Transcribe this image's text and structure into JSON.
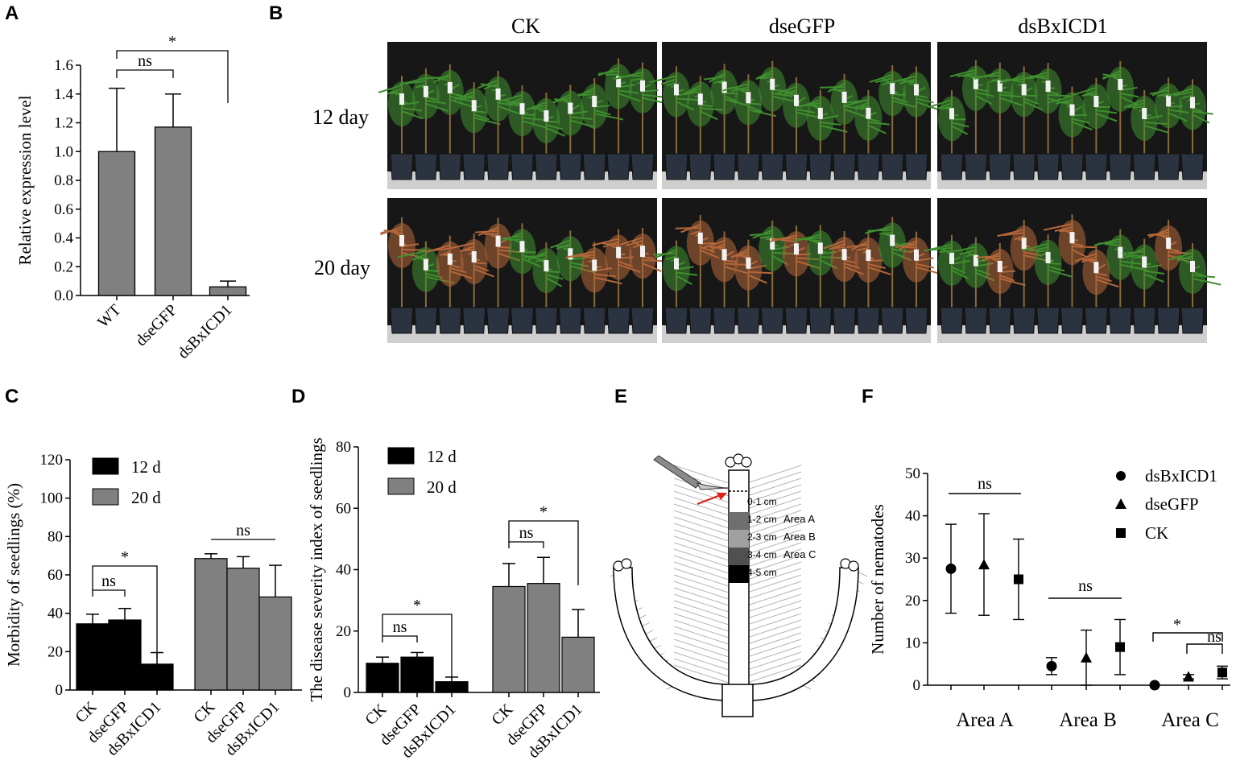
{
  "panels": {
    "A": "A",
    "B": "B",
    "C": "C",
    "D": "D",
    "E": "E",
    "F": "F"
  },
  "photo": {
    "columns": [
      "CK",
      "dseGFP",
      "dsBxICD1"
    ],
    "rows": [
      "12 day",
      "20 day"
    ],
    "colors": {
      "background": "#171717",
      "foliage": "#3f8f2f",
      "wilted": "#b5673a",
      "pot": "#2b3340"
    }
  },
  "diagram": {
    "segments": [
      {
        "label": "0-1 cm",
        "area": "",
        "color": "#ffffff"
      },
      {
        "label": "1-2 cm",
        "area": "Area A",
        "color": "#6f6f6f"
      },
      {
        "label": "2-3 cm",
        "area": "Area B",
        "color": "#a0a0a0"
      },
      {
        "label": "3-4 cm",
        "area": "Area C",
        "color": "#505050"
      },
      {
        "label": "4-5 cm",
        "area": "",
        "color": "#000000"
      }
    ]
  },
  "chart_data": [
    {
      "panel": "A",
      "type": "bar",
      "title": "",
      "xlabel": "",
      "ylabel": "Relative expression level",
      "categories": [
        "WT",
        "dseGFP",
        "dsBxICD1"
      ],
      "values": [
        1.0,
        1.17,
        0.06
      ],
      "errors": [
        0.44,
        0.23,
        0.04
      ],
      "ylim": [
        0,
        1.6
      ],
      "yticks": [
        "0.0",
        "0.2",
        "0.4",
        "0.6",
        "0.8",
        "1.0",
        "1.2",
        "1.4",
        "1.6"
      ],
      "color": "#808080",
      "annotations": [
        {
          "text": "ns",
          "from": 0,
          "to": 1
        },
        {
          "text": "*",
          "from": 0,
          "to": 2
        }
      ]
    },
    {
      "panel": "C",
      "type": "bar",
      "title": "",
      "xlabel": "",
      "ylabel": "Morbidity of seedlings (%)",
      "groups": [
        {
          "categories": [
            "CK",
            "dseGFP",
            "dsBxICD1"
          ],
          "values": [
            34.5,
            36.5,
            13.5
          ],
          "errors": [
            5,
            6,
            6
          ],
          "series": "12 d"
        },
        {
          "categories": [
            "CK",
            "dseGFP",
            "dsBxICD1"
          ],
          "values": [
            68.5,
            63.5,
            48.5
          ],
          "errors": [
            2.5,
            6,
            16.5
          ],
          "series": "20 d"
        }
      ],
      "ylim": [
        0,
        120
      ],
      "yticks": [
        "0",
        "20",
        "40",
        "60",
        "80",
        "100",
        "120"
      ],
      "legend": [
        {
          "name": "12 d",
          "color": "#000000"
        },
        {
          "name": "20 d",
          "color": "#808080"
        }
      ],
      "annotations": [
        {
          "text": "ns",
          "group": 0,
          "from": 0,
          "to": 1
        },
        {
          "text": "*",
          "group": 0,
          "from": 0,
          "to": 2
        },
        {
          "text": "ns",
          "group": 1,
          "from": 0,
          "to": 2
        }
      ]
    },
    {
      "panel": "D",
      "type": "bar",
      "title": "",
      "xlabel": "",
      "ylabel": "The disease severity index of seedlings",
      "groups": [
        {
          "categories": [
            "CK",
            "dseGFP",
            "dsBxICD1"
          ],
          "values": [
            9.5,
            11.5,
            3.5
          ],
          "errors": [
            2,
            1.5,
            1.5
          ],
          "series": "12 d"
        },
        {
          "categories": [
            "CK",
            "dseGFP",
            "dsBxICD1"
          ],
          "values": [
            34.5,
            35.5,
            18
          ],
          "errors": [
            7.5,
            8.5,
            9
          ],
          "series": "20 d"
        }
      ],
      "ylim": [
        0,
        80
      ],
      "yticks": [
        "0",
        "20",
        "40",
        "60",
        "80"
      ],
      "legend": [
        {
          "name": "12 d",
          "color": "#000000"
        },
        {
          "name": "20 d",
          "color": "#808080"
        }
      ],
      "annotations": [
        {
          "text": "ns",
          "group": 0,
          "from": 0,
          "to": 1
        },
        {
          "text": "*",
          "group": 0,
          "from": 0,
          "to": 2
        },
        {
          "text": "ns",
          "group": 1,
          "from": 0,
          "to": 1
        },
        {
          "text": "*",
          "group": 1,
          "from": 0,
          "to": 2
        }
      ]
    },
    {
      "panel": "F",
      "type": "scatter",
      "title": "",
      "xlabel": "",
      "ylabel": "Number of nematodes",
      "categories": [
        "Area A",
        "Area B",
        "Area C"
      ],
      "series": [
        {
          "name": "dsBxICD1",
          "marker": "circle",
          "values": [
            27.5,
            4.5,
            0
          ],
          "errors": [
            10.5,
            2,
            0
          ]
        },
        {
          "name": "dseGFP",
          "marker": "triangle",
          "values": [
            28.5,
            6.5,
            2
          ],
          "errors": [
            12,
            6.5,
            0.5
          ]
        },
        {
          "name": "CK",
          "marker": "square",
          "values": [
            25,
            9,
            3
          ],
          "errors": [
            9.5,
            6.5,
            1.5
          ]
        }
      ],
      "ylim": [
        0,
        50
      ],
      "yticks": [
        "0",
        "10",
        "20",
        "30",
        "40",
        "50"
      ],
      "annotations": [
        {
          "text": "ns",
          "category": 0
        },
        {
          "text": "ns",
          "category": 1
        },
        {
          "text": "*",
          "category": 2,
          "from": 0,
          "to": 2
        },
        {
          "text": "ns",
          "category": 2,
          "from": 1,
          "to": 2
        }
      ]
    }
  ]
}
